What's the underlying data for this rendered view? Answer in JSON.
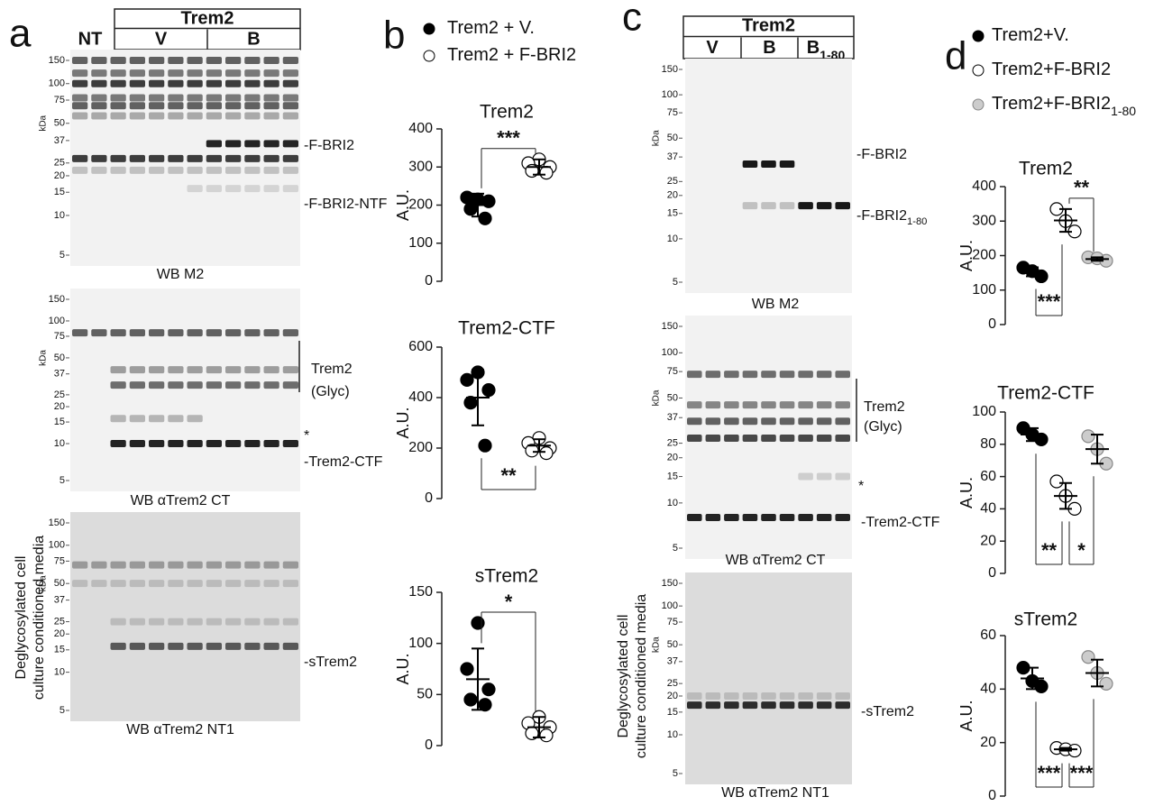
{
  "panel_letters": [
    "a",
    "b",
    "c",
    "d"
  ],
  "legends": {
    "b": [
      {
        "label": "Trem2 + V.",
        "color": "#000000"
      },
      {
        "label": "Trem2 + F-BRI2",
        "color": "#ffffff"
      }
    ],
    "d": [
      {
        "label": "Trem2+V.",
        "color": "#000000"
      },
      {
        "label": "Trem2+F-BRI2",
        "color": "#ffffff"
      },
      {
        "label": "Trem2+F-BRI2",
        "sub": "1-80",
        "color": "#cccccc"
      }
    ]
  },
  "blot_panels": {
    "a": {
      "group": "Trem2",
      "lanes": [
        "NT",
        "V",
        "B"
      ],
      "kda": "kDa",
      "side": [
        "Deglycosylated cell",
        "culture conditioned media"
      ],
      "blots": [
        {
          "markers": [
            150,
            100,
            75,
            50,
            37,
            25,
            20,
            15,
            10,
            5
          ],
          "caption": "WB M2",
          "labels": [
            "-F-BRI2",
            "-F-BRI2-NTF"
          ]
        },
        {
          "markers": [
            150,
            100,
            75,
            50,
            37,
            25,
            20,
            15,
            10,
            5
          ],
          "caption": "WB  αTrem2 CT",
          "labels": [
            "Trem2",
            "(Glyc)",
            "*",
            "-Trem2-CTF"
          ]
        },
        {
          "markers": [
            150,
            100,
            75,
            50,
            37,
            25,
            20,
            15,
            10,
            5
          ],
          "caption": "WB  αTrem2 NT1",
          "labels": [
            "-sTrem2"
          ]
        }
      ]
    },
    "c": {
      "group": "Trem2",
      "lanes": [
        {
          "text": "V"
        },
        {
          "text": "B"
        },
        {
          "text": "B",
          "sub": "1-80"
        }
      ],
      "kda": "kDa",
      "side": [
        "Deglycosylated cell",
        "culture conditioned media"
      ],
      "blots": [
        {
          "markers": [
            150,
            100,
            75,
            50,
            37,
            25,
            20,
            15,
            10,
            5
          ],
          "caption": "WB M2",
          "labels": [
            {
              "text": "-F-BRI2"
            },
            {
              "text": "-F-BRI2",
              "sub": "1-80"
            }
          ]
        },
        {
          "markers": [
            150,
            100,
            75,
            50,
            37,
            25,
            20,
            15,
            10,
            5
          ],
          "caption": "WB  αTrem2 CT",
          "labels": [
            {
              "text": "Trem2"
            },
            {
              "text": "(Glyc)"
            },
            {
              "text": "*"
            },
            {
              "text": "-Trem2-CTF"
            }
          ]
        },
        {
          "markers": [
            150,
            100,
            75,
            50,
            37,
            25,
            20,
            15,
            10,
            5
          ],
          "caption": "WB  αTrem2 NT1",
          "labels": [
            {
              "text": "-sTrem2"
            }
          ]
        }
      ]
    }
  },
  "chart_data": [
    {
      "type": "dot",
      "title": "Trem2",
      "y_label": "A.U.",
      "ylim": [
        0,
        400
      ],
      "yticks": [
        0,
        100,
        200,
        300,
        400
      ],
      "series": [
        {
          "color": "#000000",
          "values": [
            215,
            220,
            210,
            190,
            165
          ],
          "mean": 200,
          "sd": 30
        },
        {
          "color": "#ffffff",
          "values": [
            320,
            310,
            300,
            290,
            285
          ],
          "mean": 300,
          "sd": 20
        }
      ],
      "annotations": [
        {
          "text": "***",
          "from": 0,
          "to": 1,
          "side": "top"
        }
      ]
    },
    {
      "type": "dot",
      "title": "Trem2-CTF",
      "y_label": "A.U.",
      "ylim": [
        0,
        600
      ],
      "yticks": [
        0,
        200,
        400,
        600
      ],
      "series": [
        {
          "color": "#000000",
          "values": [
            500,
            470,
            430,
            380,
            210
          ],
          "mean": 400,
          "sd": 110
        },
        {
          "color": "#ffffff",
          "values": [
            240,
            220,
            200,
            190,
            180
          ],
          "mean": 210,
          "sd": 25
        }
      ],
      "annotations": [
        {
          "text": "**",
          "from": 0,
          "to": 1,
          "side": "bottom"
        }
      ]
    },
    {
      "type": "dot",
      "title": "sTrem2",
      "y_label": "A.U.",
      "ylim": [
        0,
        150
      ],
      "yticks": [
        0,
        50,
        100,
        150
      ],
      "series": [
        {
          "color": "#000000",
          "values": [
            120,
            75,
            55,
            45,
            40
          ],
          "mean": 65,
          "sd": 30
        },
        {
          "color": "#ffffff",
          "values": [
            28,
            22,
            18,
            12,
            10
          ],
          "mean": 18,
          "sd": 10
        }
      ],
      "annotations": [
        {
          "text": "*",
          "from": 0,
          "to": 1,
          "side": "top"
        }
      ]
    },
    {
      "type": "dot",
      "title": "Trem2",
      "y_label": "A.U.",
      "ylim": [
        0,
        400
      ],
      "yticks": [
        0,
        100,
        200,
        300,
        400
      ],
      "series": [
        {
          "color": "#000000",
          "values": [
            165,
            155,
            140
          ],
          "mean": 153,
          "sd": 13
        },
        {
          "color": "#ffffff",
          "values": [
            335,
            300,
            270
          ],
          "mean": 302,
          "sd": 33
        },
        {
          "color": "#cccccc",
          "values": [
            195,
            192,
            185
          ],
          "mean": 190,
          "sd": 5
        }
      ],
      "annotations": [
        {
          "text": "***",
          "from": 0,
          "to": 1,
          "side": "bottom"
        },
        {
          "text": "**",
          "from": 1,
          "to": 2,
          "side": "top"
        }
      ]
    },
    {
      "type": "dot",
      "title": "Trem2-CTF",
      "y_label": "A.U.",
      "ylim": [
        0,
        100
      ],
      "yticks": [
        0,
        20,
        40,
        60,
        80,
        100
      ],
      "series": [
        {
          "color": "#000000",
          "values": [
            90,
            86,
            83
          ],
          "mean": 86,
          "sd": 4
        },
        {
          "color": "#ffffff",
          "values": [
            57,
            48,
            40
          ],
          "mean": 48,
          "sd": 8
        },
        {
          "color": "#cccccc",
          "values": [
            85,
            77,
            68
          ],
          "mean": 77,
          "sd": 9
        }
      ],
      "annotations": [
        {
          "text": "**",
          "from": 0,
          "to": 1,
          "side": "bottom"
        },
        {
          "text": "*",
          "from": 1,
          "to": 2,
          "side": "bottom"
        }
      ]
    },
    {
      "type": "dot",
      "title": "sTrem2",
      "y_label": "A.U.",
      "ylim": [
        0,
        60
      ],
      "yticks": [
        0,
        20,
        40,
        60
      ],
      "series": [
        {
          "color": "#000000",
          "values": [
            48,
            43,
            41
          ],
          "mean": 44,
          "sd": 4
        },
        {
          "color": "#ffffff",
          "values": [
            18,
            17.5,
            17
          ],
          "mean": 17.5,
          "sd": 0.5
        },
        {
          "color": "#cccccc",
          "values": [
            52,
            46,
            42
          ],
          "mean": 46,
          "sd": 5
        }
      ],
      "annotations": [
        {
          "text": "***",
          "from": 0,
          "to": 1,
          "side": "bottom"
        },
        {
          "text": "***",
          "from": 1,
          "to": 2,
          "side": "bottom"
        }
      ]
    }
  ]
}
